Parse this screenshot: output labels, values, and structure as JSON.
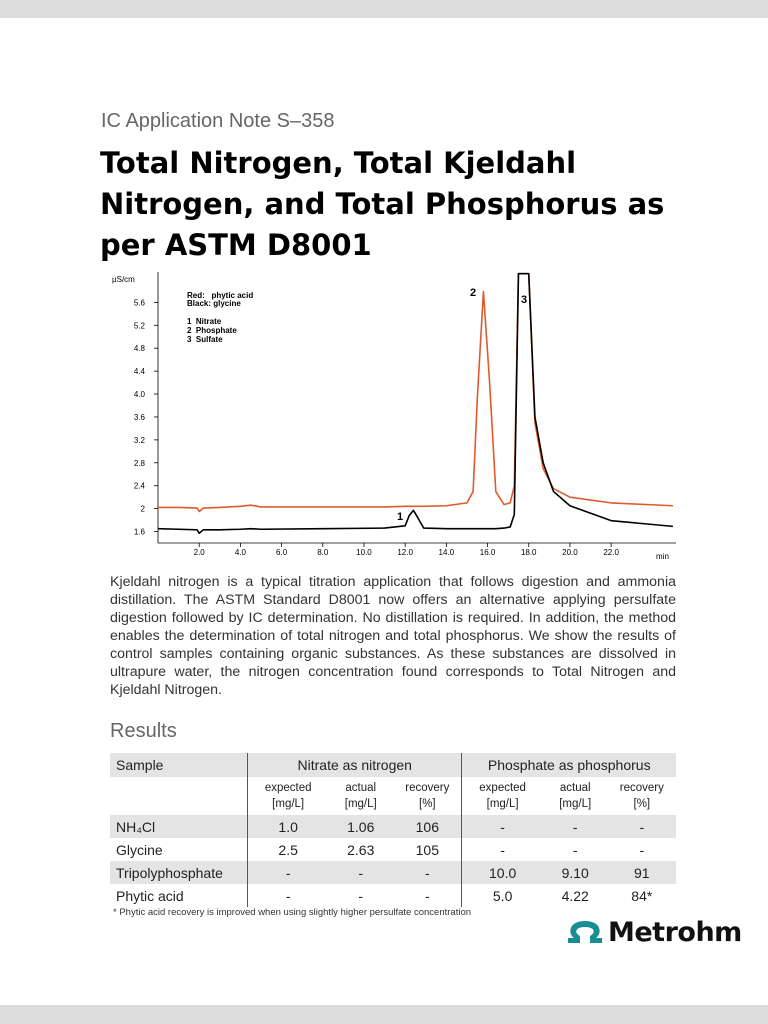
{
  "header": {
    "note": "IC Application Note S–358",
    "title": "Total Nitrogen, Total Kjeldahl Nitrogen, and Total Phosphorus as per ASTM D8001"
  },
  "chart_data": {
    "type": "line",
    "y_label": "µS/cm",
    "x_label": "min",
    "legend": [
      "Red:   phytic acid",
      "Black: glycine"
    ],
    "peaks": [
      "1  Nitrate",
      "2  Phosphate",
      "3  Sulfate"
    ],
    "annotations": [
      "1",
      "2",
      "3"
    ],
    "xlim": [
      0,
      25.15
    ],
    "ylim": [
      1.4,
      6.13
    ],
    "xticks": [
      {
        "value": 2,
        "label": "2.0"
      },
      {
        "value": 4,
        "label": "4.0"
      },
      {
        "value": 6,
        "label": "6.0"
      },
      {
        "value": 8,
        "label": "8.0"
      },
      {
        "value": 10,
        "label": "10.0"
      },
      {
        "value": 12,
        "label": "12.0"
      },
      {
        "value": 14,
        "label": "14.0"
      },
      {
        "value": 16,
        "label": "16.0"
      },
      {
        "value": 18,
        "label": "18.0"
      },
      {
        "value": 20,
        "label": "20.0"
      },
      {
        "value": 22,
        "label": "22.0"
      }
    ],
    "yticks": [
      1.6,
      2,
      {
        "value": 2.4,
        "label": "2.4"
      },
      2.8,
      3.2,
      3.6,
      {
        "value": 4,
        "label": "4.0"
      },
      4.4,
      4.8,
      5.2,
      5.6
    ],
    "x": [
      0,
      1,
      1.9,
      2,
      2.2,
      3,
      4,
      4.5,
      5,
      8,
      11,
      12,
      12.2,
      12.4,
      12.6,
      12.9,
      14,
      15,
      15.3,
      15.5,
      15.8,
      16.1,
      16.4,
      16.8,
      17.1,
      17.3,
      17.5,
      18,
      18.3,
      18.7,
      19.2,
      20,
      22,
      25
    ],
    "series": [
      {
        "name": "phytic acid",
        "color": "#e05a2b",
        "values": [
          2.02,
          2.02,
          2.01,
          1.95,
          2.01,
          2.02,
          2.04,
          2.06,
          2.03,
          2.03,
          2.03,
          2.04,
          2.04,
          2.04,
          2.04,
          2.04,
          2.05,
          2.1,
          2.3,
          3.9,
          5.79,
          4.2,
          2.3,
          2.07,
          2.1,
          2.4,
          6.1,
          6.1,
          3.5,
          2.7,
          2.35,
          2.2,
          2.1,
          2.05
        ]
      },
      {
        "name": "glycine",
        "color": "#000000",
        "values": [
          1.65,
          1.64,
          1.63,
          1.57,
          1.63,
          1.63,
          1.64,
          1.65,
          1.64,
          1.65,
          1.66,
          1.7,
          1.88,
          1.97,
          1.85,
          1.66,
          1.65,
          1.65,
          1.65,
          1.65,
          1.65,
          1.65,
          1.65,
          1.66,
          1.68,
          1.9,
          6.1,
          6.1,
          3.6,
          2.8,
          2.3,
          2.05,
          1.79,
          1.69
        ]
      }
    ]
  },
  "body": "Kjeldahl nitrogen is a typical titration application that follows digestion and ammonia distillation. The ASTM Standard D8001 now offers an alternative applying persulfate digestion followed by IC determination. No distillation is required. In addition, the method enables the determination of total nitrogen and total phosphorus. We show the results of control samples containing organic substances. As these substances are dissolved in ultrapure water, the nitrogen concentration found corresponds to Total Nitrogen and Kjeldahl Nitrogen.",
  "results": {
    "heading": "Results",
    "table": {
      "header": [
        "Sample",
        "Nitrate as nitrogen",
        "Phosphate as phosphorus"
      ],
      "units": [
        "expected [mg/L]",
        "actual [mg/L]",
        "recovery [%]",
        "expected [mg/L]",
        "actual [mg/L]",
        "recovery [%]"
      ],
      "rows": [
        [
          "NH₄Cl",
          "1.0",
          "1.06",
          "106",
          "-",
          "-",
          "-"
        ],
        [
          "Glycine",
          "2.5",
          "2.63",
          "105",
          "-",
          "-",
          "-"
        ],
        [
          "Tripolyphosphate",
          "-",
          "-",
          "-",
          "10.0",
          "9.10",
          "91"
        ],
        [
          "Phytic acid",
          "-",
          "-",
          "-",
          "5.0",
          "4.22",
          "84*"
        ]
      ]
    },
    "footnote": "* Phytic acid recovery is improved when using slightly higher persulfate  concentration"
  },
  "logo": "Metrohm"
}
